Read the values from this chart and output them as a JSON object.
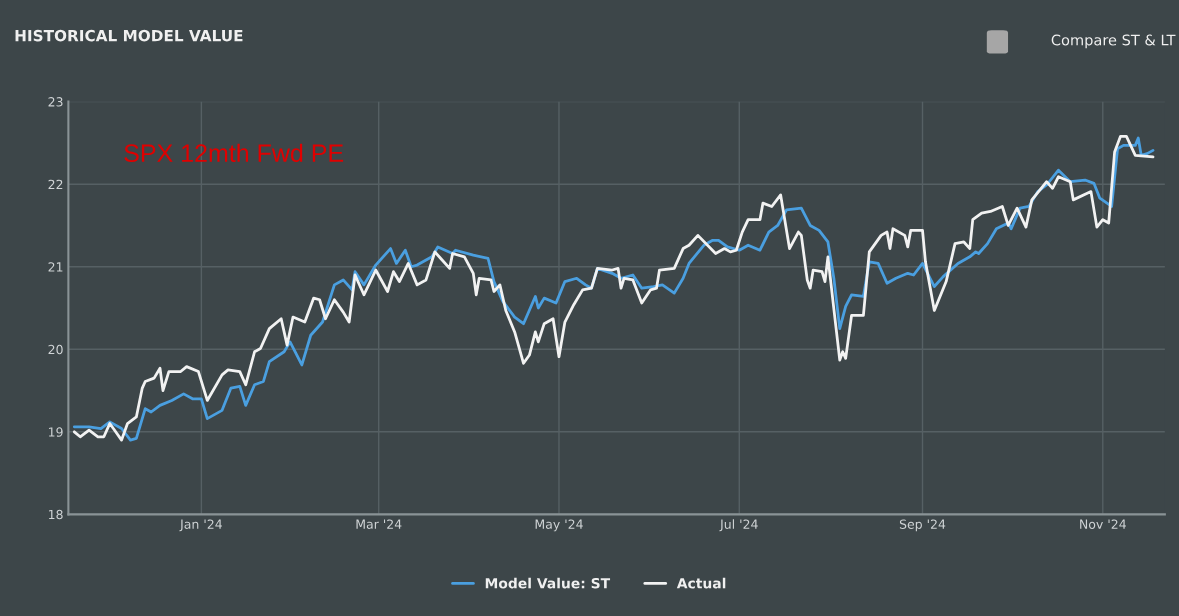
{
  "chart_data": {
    "type": "line",
    "title": "HISTORICAL MODEL VALUE",
    "xlim": [
      "2023-11-17",
      "2024-11-22"
    ],
    "xticks": [
      {
        "value": "2024-01-01",
        "label": "Jan '24"
      },
      {
        "value": "2024-03-01",
        "label": "Mar '24"
      },
      {
        "value": "2024-05-01",
        "label": "May '24"
      },
      {
        "value": "2024-07-01",
        "label": "Jul '24"
      },
      {
        "value": "2024-09-01",
        "label": "Sep '24"
      },
      {
        "value": "2024-11-01",
        "label": "Nov '24"
      }
    ],
    "ylim": [
      18,
      23
    ],
    "yticks": [
      18,
      19,
      20,
      21,
      22,
      23
    ],
    "grid": true,
    "legend": "bottom",
    "marker": "none",
    "line_style": "solid",
    "annotations": [
      "SPX 12mth Fwd PE",
      "Compare ST & LT"
    ],
    "series": [
      {
        "name": "Model Value: ST",
        "color": "#4a9fe0",
        "x": [
          "2023-11-19",
          "2023-11-24",
          "2023-11-28",
          "2023-12-01",
          "2023-12-05",
          "2023-12-08",
          "2023-12-10",
          "2023-12-13",
          "2023-12-15",
          "2023-12-18",
          "2023-12-22",
          "2023-12-26",
          "2023-12-29",
          "2024-01-01",
          "2024-01-03",
          "2024-01-08",
          "2024-01-11",
          "2024-01-14",
          "2024-01-16",
          "2024-01-19",
          "2024-01-22",
          "2024-01-24",
          "2024-01-29",
          "2024-01-31",
          "2024-02-04",
          "2024-02-07",
          "2024-02-11",
          "2024-02-15",
          "2024-02-18",
          "2024-02-21",
          "2024-02-22",
          "2024-02-25",
          "2024-02-29",
          "2024-03-05",
          "2024-03-07",
          "2024-03-10",
          "2024-03-12",
          "2024-03-14",
          "2024-03-19",
          "2024-03-21",
          "2024-03-26",
          "2024-03-27",
          "2024-04-02",
          "2024-04-07",
          "2024-04-09",
          "2024-04-12",
          "2024-04-16",
          "2024-04-19",
          "2024-04-23",
          "2024-04-24",
          "2024-04-26",
          "2024-04-30",
          "2024-05-03",
          "2024-05-07",
          "2024-05-10",
          "2024-05-12",
          "2024-05-14",
          "2024-05-19",
          "2024-05-22",
          "2024-05-26",
          "2024-05-29",
          "2024-06-02",
          "2024-06-05",
          "2024-06-09",
          "2024-06-12",
          "2024-06-14",
          "2024-06-19",
          "2024-06-22",
          "2024-06-24",
          "2024-06-27",
          "2024-07-01",
          "2024-07-04",
          "2024-07-08",
          "2024-07-11",
          "2024-07-14",
          "2024-07-17",
          "2024-07-22",
          "2024-07-25",
          "2024-07-28",
          "2024-07-31",
          "2024-08-02",
          "2024-08-04",
          "2024-08-06",
          "2024-08-08",
          "2024-08-12",
          "2024-08-14",
          "2024-08-17",
          "2024-08-20",
          "2024-08-23",
          "2024-08-27",
          "2024-08-29",
          "2024-09-01",
          "2024-09-05",
          "2024-09-08",
          "2024-09-13",
          "2024-09-17",
          "2024-09-19",
          "2024-09-20",
          "2024-09-23",
          "2024-09-26",
          "2024-09-30",
          "2024-10-01",
          "2024-10-04",
          "2024-10-07",
          "2024-10-10",
          "2024-10-13",
          "2024-10-17",
          "2024-10-21",
          "2024-10-26",
          "2024-10-29",
          "2024-10-31",
          "2024-11-04",
          "2024-11-06",
          "2024-11-08",
          "2024-11-12",
          "2024-11-13",
          "2024-11-14",
          "2024-11-16",
          "2024-11-18"
        ],
        "values": [
          19.06,
          19.06,
          19.04,
          19.12,
          19.04,
          18.9,
          18.92,
          19.28,
          19.24,
          19.32,
          19.38,
          19.46,
          19.4,
          19.4,
          19.16,
          19.26,
          19.53,
          19.55,
          19.32,
          19.57,
          19.61,
          19.85,
          19.97,
          20.09,
          19.81,
          20.17,
          20.33,
          20.78,
          20.84,
          20.72,
          20.94,
          20.78,
          21.02,
          21.22,
          21.04,
          21.2,
          21.0,
          21.02,
          21.12,
          21.24,
          21.16,
          21.2,
          21.14,
          21.1,
          20.82,
          20.58,
          20.39,
          20.31,
          20.64,
          20.5,
          20.62,
          20.56,
          20.82,
          20.86,
          20.78,
          20.74,
          20.98,
          20.92,
          20.86,
          20.9,
          20.74,
          20.76,
          20.78,
          20.68,
          20.86,
          21.04,
          21.26,
          21.32,
          21.32,
          21.24,
          21.2,
          21.26,
          21.2,
          21.42,
          21.5,
          21.69,
          21.71,
          21.5,
          21.44,
          21.3,
          20.86,
          20.25,
          20.52,
          20.66,
          20.64,
          21.06,
          21.04,
          20.8,
          20.86,
          20.92,
          20.9,
          21.04,
          20.76,
          20.88,
          21.04,
          21.12,
          21.18,
          21.16,
          21.28,
          21.46,
          21.53,
          21.46,
          21.71,
          21.73,
          21.91,
          21.99,
          22.17,
          22.03,
          22.05,
          22.01,
          21.83,
          21.73,
          22.43,
          22.47,
          22.47,
          22.56,
          22.35,
          22.37,
          22.41
        ]
      },
      {
        "name": "Actual",
        "color": "#f2f2f2",
        "x": [
          "2023-11-19",
          "2023-11-21",
          "2023-11-24",
          "2023-11-27",
          "2023-11-29",
          "2023-12-01",
          "2023-12-03",
          "2023-12-05",
          "2023-12-07",
          "2023-12-10",
          "2023-12-12",
          "2023-12-13",
          "2023-12-16",
          "2023-12-18",
          "2023-12-19",
          "2023-12-21",
          "2023-12-25",
          "2023-12-27",
          "2023-12-31",
          "2024-01-03",
          "2024-01-08",
          "2024-01-10",
          "2024-01-14",
          "2024-01-16",
          "2024-01-19",
          "2024-01-21",
          "2024-01-24",
          "2024-01-28",
          "2024-01-30",
          "2024-02-01",
          "2024-02-05",
          "2024-02-08",
          "2024-02-10",
          "2024-02-12",
          "2024-02-15",
          "2024-02-18",
          "2024-02-20",
          "2024-02-22",
          "2024-02-25",
          "2024-02-29",
          "2024-03-04",
          "2024-03-06",
          "2024-03-08",
          "2024-03-11",
          "2024-03-14",
          "2024-03-17",
          "2024-03-20",
          "2024-03-22",
          "2024-03-25",
          "2024-03-26",
          "2024-03-30",
          "2024-04-02",
          "2024-04-03",
          "2024-04-04",
          "2024-04-08",
          "2024-04-09",
          "2024-04-11",
          "2024-04-13",
          "2024-04-16",
          "2024-04-19",
          "2024-04-21",
          "2024-04-23",
          "2024-04-24",
          "2024-04-26",
          "2024-04-29",
          "2024-05-01",
          "2024-05-03",
          "2024-05-06",
          "2024-05-09",
          "2024-05-12",
          "2024-05-14",
          "2024-05-19",
          "2024-05-21",
          "2024-05-22",
          "2024-05-23",
          "2024-05-26",
          "2024-05-29",
          "2024-06-01",
          "2024-06-03",
          "2024-06-04",
          "2024-06-09",
          "2024-06-12",
          "2024-06-14",
          "2024-06-17",
          "2024-06-23",
          "2024-06-26",
          "2024-06-28",
          "2024-06-30",
          "2024-07-02",
          "2024-07-04",
          "2024-07-08",
          "2024-07-09",
          "2024-07-12",
          "2024-07-15",
          "2024-07-18",
          "2024-07-21",
          "2024-07-22",
          "2024-07-24",
          "2024-07-25",
          "2024-07-26",
          "2024-07-29",
          "2024-07-30",
          "2024-07-31",
          "2024-08-02",
          "2024-08-04",
          "2024-08-05",
          "2024-08-06",
          "2024-08-08",
          "2024-08-12",
          "2024-08-14",
          "2024-08-18",
          "2024-08-20",
          "2024-08-21",
          "2024-08-22",
          "2024-08-26",
          "2024-08-27",
          "2024-08-28",
          "2024-09-01",
          "2024-09-02",
          "2024-09-05",
          "2024-09-09",
          "2024-09-12",
          "2024-09-15",
          "2024-09-17",
          "2024-09-18",
          "2024-09-21",
          "2024-09-24",
          "2024-09-28",
          "2024-09-30",
          "2024-10-03",
          "2024-10-06",
          "2024-10-08",
          "2024-10-13",
          "2024-10-15",
          "2024-10-17",
          "2024-10-21",
          "2024-10-22",
          "2024-10-28",
          "2024-10-30",
          "2024-11-01",
          "2024-11-03",
          "2024-11-05",
          "2024-11-07",
          "2024-11-09",
          "2024-11-12",
          "2024-11-18"
        ],
        "values": [
          19.0,
          18.94,
          19.02,
          18.94,
          18.94,
          19.1,
          19.0,
          18.9,
          19.1,
          19.18,
          19.53,
          19.61,
          19.65,
          19.77,
          19.5,
          19.73,
          19.73,
          19.79,
          19.73,
          19.38,
          19.69,
          19.75,
          19.73,
          19.57,
          19.97,
          20.01,
          20.25,
          20.37,
          20.05,
          20.39,
          20.33,
          20.62,
          20.6,
          20.37,
          20.6,
          20.45,
          20.33,
          20.9,
          20.66,
          20.96,
          20.7,
          20.94,
          20.82,
          21.04,
          20.78,
          20.84,
          21.18,
          21.1,
          20.98,
          21.16,
          21.12,
          20.92,
          20.66,
          20.86,
          20.84,
          20.7,
          20.78,
          20.47,
          20.21,
          19.83,
          19.93,
          20.21,
          20.09,
          20.31,
          20.37,
          19.91,
          20.33,
          20.54,
          20.72,
          20.74,
          20.98,
          20.96,
          20.98,
          20.74,
          20.86,
          20.84,
          20.56,
          20.72,
          20.74,
          20.96,
          20.98,
          21.22,
          21.26,
          21.38,
          21.16,
          21.22,
          21.18,
          21.2,
          21.42,
          21.57,
          21.57,
          21.77,
          21.73,
          21.87,
          21.22,
          21.42,
          21.38,
          20.84,
          20.74,
          20.96,
          20.94,
          20.82,
          21.12,
          20.49,
          19.87,
          19.97,
          19.89,
          20.41,
          20.41,
          21.18,
          21.38,
          21.42,
          21.22,
          21.46,
          21.38,
          21.24,
          21.44,
          21.44,
          21.06,
          20.47,
          20.82,
          21.28,
          21.3,
          21.22,
          21.57,
          21.65,
          21.67,
          21.73,
          21.5,
          21.71,
          21.48,
          21.81,
          22.03,
          21.95,
          22.09,
          22.03,
          21.81,
          21.91,
          21.48,
          21.57,
          21.53,
          22.39,
          22.58,
          22.58,
          22.35,
          22.33
        ]
      }
    ]
  }
}
